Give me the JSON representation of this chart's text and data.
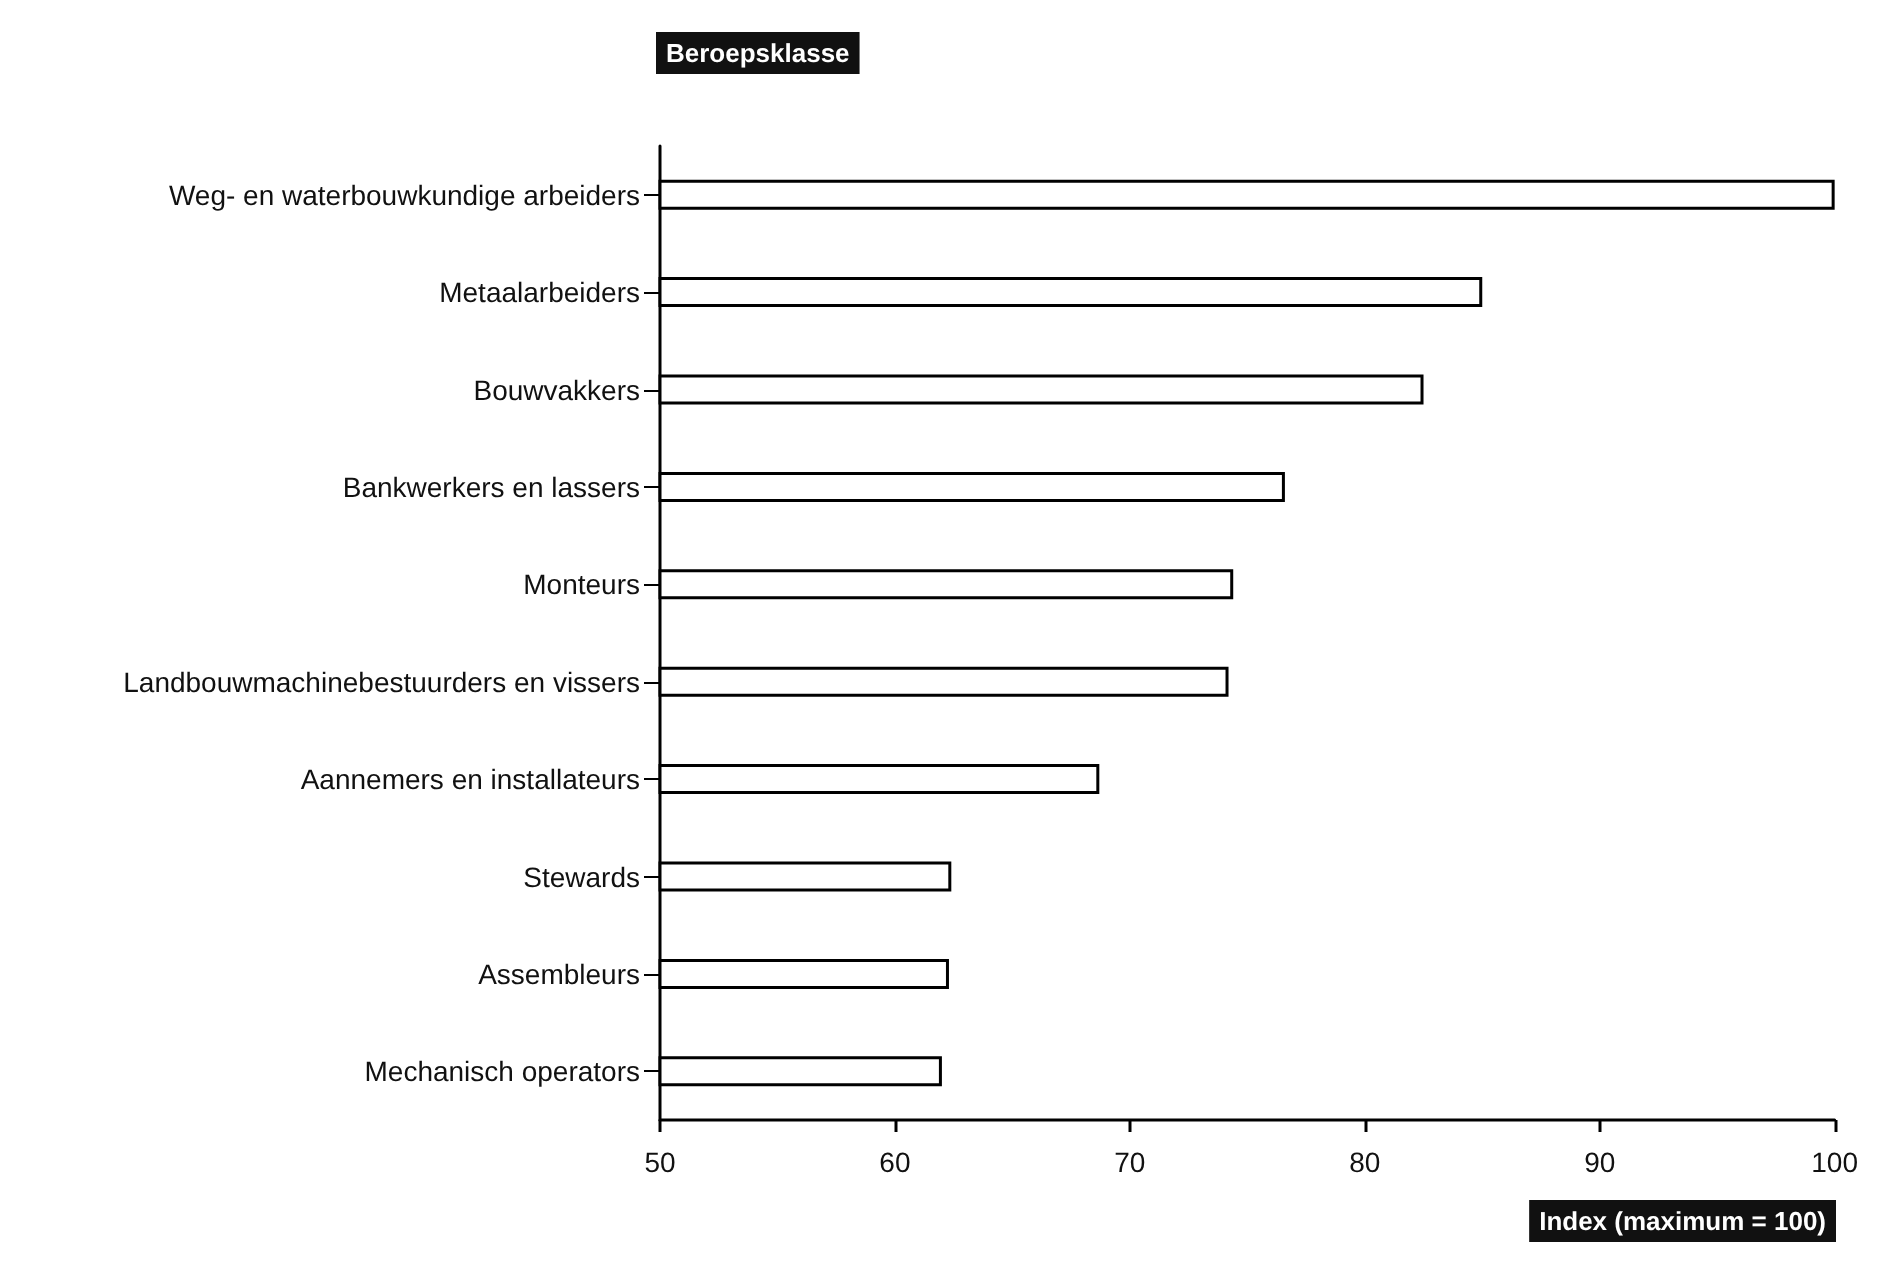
{
  "chart_data": {
    "type": "bar",
    "orientation": "horizontal",
    "ylabel": "Beroepsklasse",
    "xlabel": "Index (maximum = 100)",
    "categories": [
      "Weg- en waterbouwkundige arbeiders",
      "Metaalarbeiders",
      "Bouwvakkers",
      "Bankwerkers en lassers",
      "Monteurs",
      "Landbouwmachinebestuurders en vissers",
      "Aannemers en installateurs",
      "Stewards",
      "Assembleurs",
      "Mechanisch operators"
    ],
    "values": [
      100,
      85,
      82.5,
      76.6,
      74.4,
      74.2,
      68.7,
      62.4,
      62.3,
      62.0
    ],
    "color": "#ffffff",
    "xlim": [
      50,
      100
    ],
    "xticks": [
      50,
      60,
      70,
      80,
      90,
      100
    ],
    "grid": false
  }
}
